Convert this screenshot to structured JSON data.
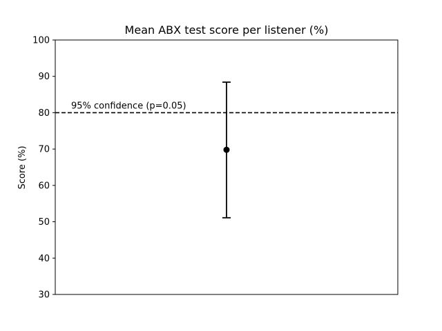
{
  "chart_data": {
    "type": "scatter",
    "title": "Mean ABX test score per listener (%)",
    "xlabel": "",
    "ylabel": "Score (%)",
    "ylim": [
      30,
      100
    ],
    "yticks": [
      30,
      40,
      50,
      60,
      70,
      80,
      90,
      100
    ],
    "grid": false,
    "points": [
      {
        "mean": 69.8,
        "err_low": 51.1,
        "err_high": 88.4
      }
    ],
    "reference_line": {
      "y": 80,
      "style": "dashed",
      "label": "95% confidence (p=0.05)"
    },
    "colors": {
      "marker": "#000000",
      "line": "#000000"
    }
  }
}
